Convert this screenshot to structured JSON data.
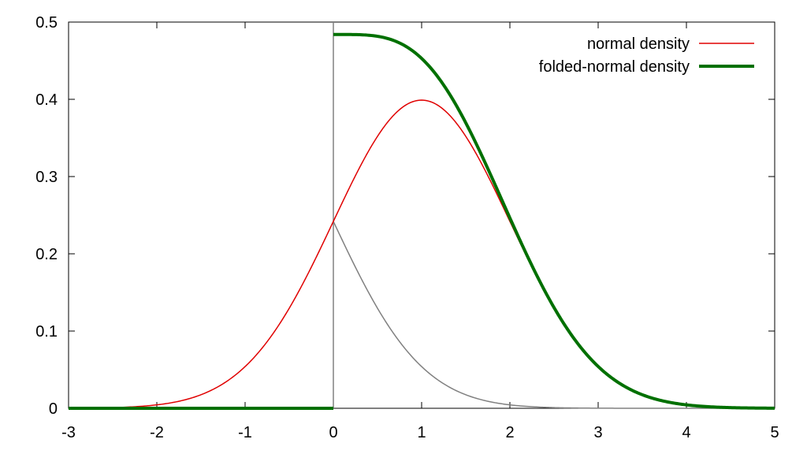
{
  "chart_data": {
    "type": "line",
    "title": "",
    "xlabel": "",
    "ylabel": "",
    "xlim": [
      -3,
      5
    ],
    "ylim": [
      0,
      0.5
    ],
    "x_ticks": [
      "-3",
      "-2",
      "-1",
      "0",
      "1",
      "2",
      "3",
      "4",
      "5"
    ],
    "y_ticks": [
      "0",
      "0.1",
      "0.2",
      "0.3",
      "0.4",
      "0.5"
    ],
    "grid": false,
    "legend_position": "top-right",
    "distribution": {
      "mean": 1,
      "sd": 1
    },
    "series": [
      {
        "name": "normal density",
        "color": "#e00000",
        "shape": "normal pdf, mean 1, sd 1, on [-3, 5]"
      },
      {
        "name": "folded-normal density",
        "color": "#007000",
        "shape": "0 on [-3, 0]; normal pdf at x plus at -x on [0, 5]"
      },
      {
        "name": "",
        "color": "#808080",
        "shape": "normal pdf at -x on [0, 5]"
      }
    ],
    "annotations": [
      {
        "type": "vertical-line",
        "x": 0,
        "color": "#808080"
      }
    ]
  }
}
